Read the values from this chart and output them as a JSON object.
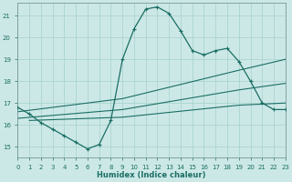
{
  "xlabel": "Humidex (Indice chaleur)",
  "bg_color": "#cce8e6",
  "grid_color": "#aad4d0",
  "line_color": "#1a6e64",
  "xlim": [
    0,
    23
  ],
  "ylim": [
    14.5,
    21.6
  ],
  "xticks": [
    0,
    1,
    2,
    3,
    4,
    5,
    6,
    7,
    8,
    9,
    10,
    11,
    12,
    13,
    14,
    15,
    16,
    17,
    18,
    19,
    20,
    21,
    22,
    23
  ],
  "yticks": [
    15,
    16,
    17,
    18,
    19,
    20,
    21
  ],
  "main_x": [
    0,
    1,
    2,
    3,
    4,
    5,
    6,
    7,
    8,
    9,
    10,
    11,
    12,
    13,
    14,
    15,
    16,
    17,
    18,
    19,
    20,
    21,
    22,
    23
  ],
  "main_y": [
    16.8,
    16.5,
    16.1,
    15.8,
    15.5,
    15.2,
    14.9,
    15.1,
    16.2,
    19.0,
    20.4,
    21.3,
    21.4,
    21.1,
    20.3,
    19.4,
    19.2,
    19.4,
    19.5,
    18.9,
    18.0,
    17.0,
    16.7,
    16.7
  ],
  "trend1_x": [
    0,
    9,
    19,
    23
  ],
  "trend1_y": [
    16.6,
    17.2,
    18.5,
    19.0
  ],
  "trend2_x": [
    0,
    9,
    19,
    23
  ],
  "trend2_y": [
    16.3,
    16.7,
    17.6,
    17.9
  ],
  "trend3_x": [
    1,
    9,
    19,
    23
  ],
  "trend3_y": [
    16.2,
    16.35,
    16.9,
    17.0
  ]
}
